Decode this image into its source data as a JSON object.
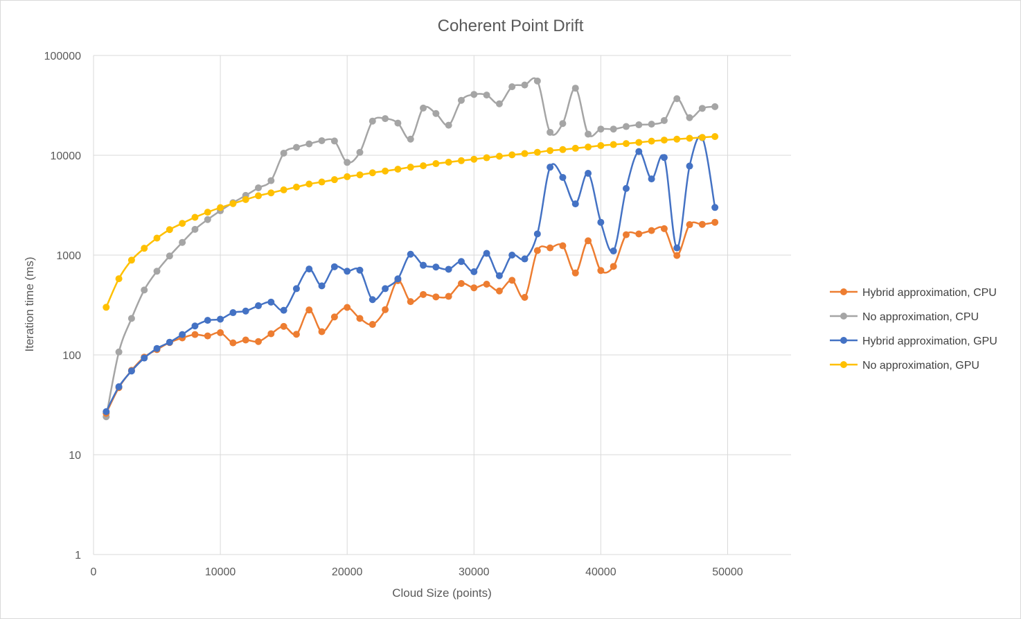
{
  "chart_data": {
    "type": "line",
    "title": "Coherent Point Drift",
    "xlabel": "Cloud Size (points)",
    "ylabel": "Iteration time (ms)",
    "x_scale": "linear",
    "y_scale": "log",
    "xlim": [
      0,
      55000
    ],
    "ylim": [
      1,
      100000
    ],
    "xticks": [
      0,
      10000,
      20000,
      30000,
      40000,
      50000
    ],
    "yticks": [
      1,
      10,
      100,
      1000,
      10000,
      100000
    ],
    "grid": true,
    "legend_position": "right",
    "x": [
      1000,
      2000,
      3000,
      4000,
      5000,
      6000,
      7000,
      8000,
      9000,
      10000,
      11000,
      12000,
      13000,
      14000,
      15000,
      16000,
      17000,
      18000,
      19000,
      20000,
      21000,
      22000,
      23000,
      24000,
      25000,
      26000,
      27000,
      28000,
      29000,
      30000,
      31000,
      32000,
      33000,
      34000,
      35000,
      36000,
      37000,
      38000,
      39000,
      40000,
      41000,
      42000,
      43000,
      44000,
      45000,
      46000,
      47000,
      48000,
      49000
    ],
    "series": [
      {
        "name": "Hybrid approximation, CPU",
        "color": "#ed7d31",
        "values": [
          26,
          47,
          70,
          95,
          113,
          133,
          148,
          160,
          155,
          167,
          132,
          141,
          136,
          163,
          193,
          161,
          282,
          171,
          240,
          299,
          232,
          202,
          284,
          555,
          342,
          403,
          381,
          386,
          519,
          470,
          511,
          437,
          559,
          377,
          1110,
          1180,
          1240,
          662,
          1390,
          700,
          770,
          1600,
          1630,
          1760,
          1840,
          990,
          2020,
          2030,
          2130
        ]
      },
      {
        "name": "No approximation, CPU",
        "color": "#a5a5a5",
        "values": [
          24,
          107,
          232,
          447,
          689,
          980,
          1340,
          1810,
          2270,
          2780,
          3350,
          3960,
          4720,
          5570,
          10500,
          12000,
          13000,
          14000,
          13900,
          8480,
          10700,
          22000,
          23300,
          21000,
          14500,
          29700,
          26200,
          20000,
          35500,
          40700,
          40100,
          32800,
          48600,
          50600,
          55500,
          17000,
          20800,
          47000,
          16300,
          18300,
          18300,
          19400,
          20200,
          20500,
          22300,
          36900,
          23800,
          29500,
          30700
        ]
      },
      {
        "name": "Hybrid approximation, GPU",
        "color": "#4472c4",
        "values": [
          27,
          48,
          69,
          93,
          116,
          134,
          160,
          195,
          222,
          228,
          265,
          275,
          311,
          338,
          280,
          461,
          725,
          492,
          764,
          689,
          706,
          358,
          461,
          578,
          1020,
          791,
          759,
          721,
          862,
          681,
          1040,
          622,
          1000,
          915,
          1630,
          7600,
          6000,
          3260,
          6600,
          2130,
          1100,
          4650,
          10900,
          5800,
          9500,
          1180,
          7800,
          15000,
          3000
        ]
      },
      {
        "name": "No approximation, GPU",
        "color": "#ffc000",
        "values": [
          300,
          580,
          890,
          1170,
          1480,
          1800,
          2080,
          2390,
          2690,
          2990,
          3280,
          3600,
          3930,
          4200,
          4500,
          4800,
          5150,
          5400,
          5700,
          6100,
          6370,
          6680,
          6950,
          7250,
          7600,
          7850,
          8250,
          8520,
          8830,
          9130,
          9450,
          9780,
          10100,
          10400,
          10700,
          11150,
          11400,
          11750,
          12100,
          12500,
          12800,
          13100,
          13450,
          13850,
          14200,
          14500,
          14800,
          15100,
          15400
        ]
      }
    ]
  }
}
